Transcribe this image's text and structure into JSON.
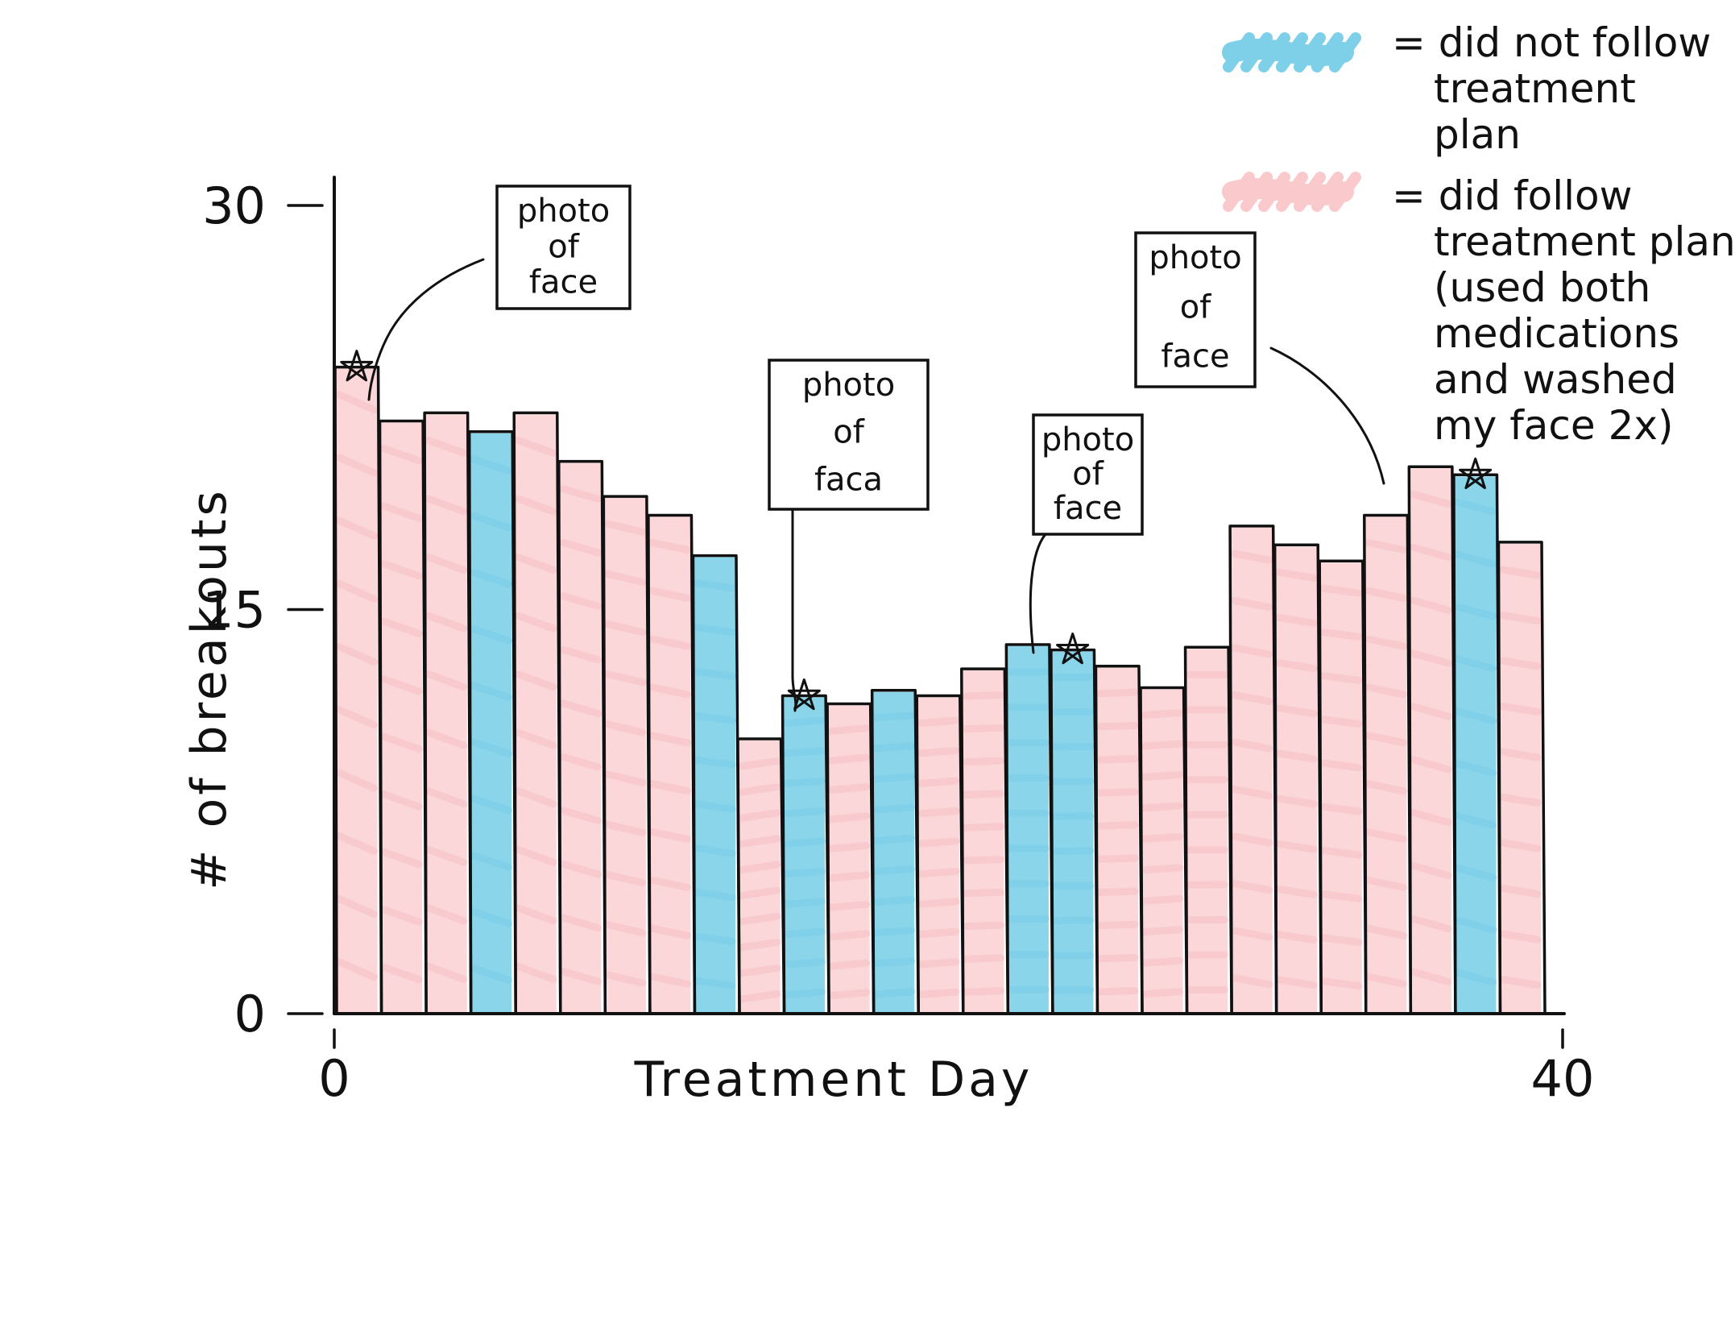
{
  "chart_data": {
    "type": "bar",
    "xlabel": "Treatment Day",
    "ylabel": "# of breakouts",
    "ylim": [
      0,
      30
    ],
    "y_ticks": [
      "30",
      "15",
      "0"
    ],
    "x_ticks": [
      "0",
      "40"
    ],
    "xlim": [
      0,
      40
    ],
    "legend": {
      "placement": "top-right",
      "entries": [
        {
          "status": "not_followed",
          "color": "#7ed0e8",
          "label_lines": [
            "= did not follow",
            "treatment",
            "plan"
          ]
        },
        {
          "status": "followed",
          "color": "#f9c9cc",
          "label_lines": [
            "= did follow",
            "treatment plan",
            "(used both",
            "medications",
            "and washed",
            "my face 2x)"
          ]
        }
      ]
    },
    "bars": [
      {
        "day": 1,
        "value": 24.0,
        "followed": true
      },
      {
        "day": 2,
        "value": 22.0,
        "followed": true
      },
      {
        "day": 3,
        "value": 22.3,
        "followed": true
      },
      {
        "day": 4,
        "value": 21.6,
        "followed": false
      },
      {
        "day": 5,
        "value": 22.3,
        "followed": true
      },
      {
        "day": 6,
        "value": 20.5,
        "followed": true
      },
      {
        "day": 7,
        "value": 19.2,
        "followed": true
      },
      {
        "day": 8,
        "value": 18.5,
        "followed": true
      },
      {
        "day": 9,
        "value": 17.0,
        "followed": false
      },
      {
        "day": 10,
        "value": 10.2,
        "followed": true
      },
      {
        "day": 11,
        "value": 11.8,
        "followed": false
      },
      {
        "day": 12,
        "value": 11.5,
        "followed": true
      },
      {
        "day": 13,
        "value": 12.0,
        "followed": false
      },
      {
        "day": 14,
        "value": 11.8,
        "followed": true
      },
      {
        "day": 15,
        "value": 12.8,
        "followed": true
      },
      {
        "day": 16,
        "value": 13.7,
        "followed": false
      },
      {
        "day": 17,
        "value": 13.5,
        "followed": false
      },
      {
        "day": 18,
        "value": 12.9,
        "followed": true
      },
      {
        "day": 19,
        "value": 12.1,
        "followed": true
      },
      {
        "day": 20,
        "value": 13.6,
        "followed": true
      },
      {
        "day": 21,
        "value": 18.1,
        "followed": true
      },
      {
        "day": 22,
        "value": 17.4,
        "followed": true
      },
      {
        "day": 23,
        "value": 16.8,
        "followed": true
      },
      {
        "day": 24,
        "value": 18.5,
        "followed": true
      },
      {
        "day": 25,
        "value": 20.3,
        "followed": true
      },
      {
        "day": 26,
        "value": 20.0,
        "followed": false
      },
      {
        "day": 27,
        "value": 17.5,
        "followed": true
      }
    ],
    "annotations": [
      {
        "label_lines": [
          "photo",
          "of",
          "face"
        ],
        "day": 1,
        "value": 24.0
      },
      {
        "label_lines": [
          "photo",
          "of",
          "faca"
        ],
        "day": 11,
        "value": 11.8
      },
      {
        "label_lines": [
          "photo",
          "of",
          "face"
        ],
        "day": 17,
        "value": 13.5
      },
      {
        "label_lines": [
          "photo",
          "of",
          "face"
        ],
        "day": 26,
        "value": 20.0
      }
    ]
  }
}
